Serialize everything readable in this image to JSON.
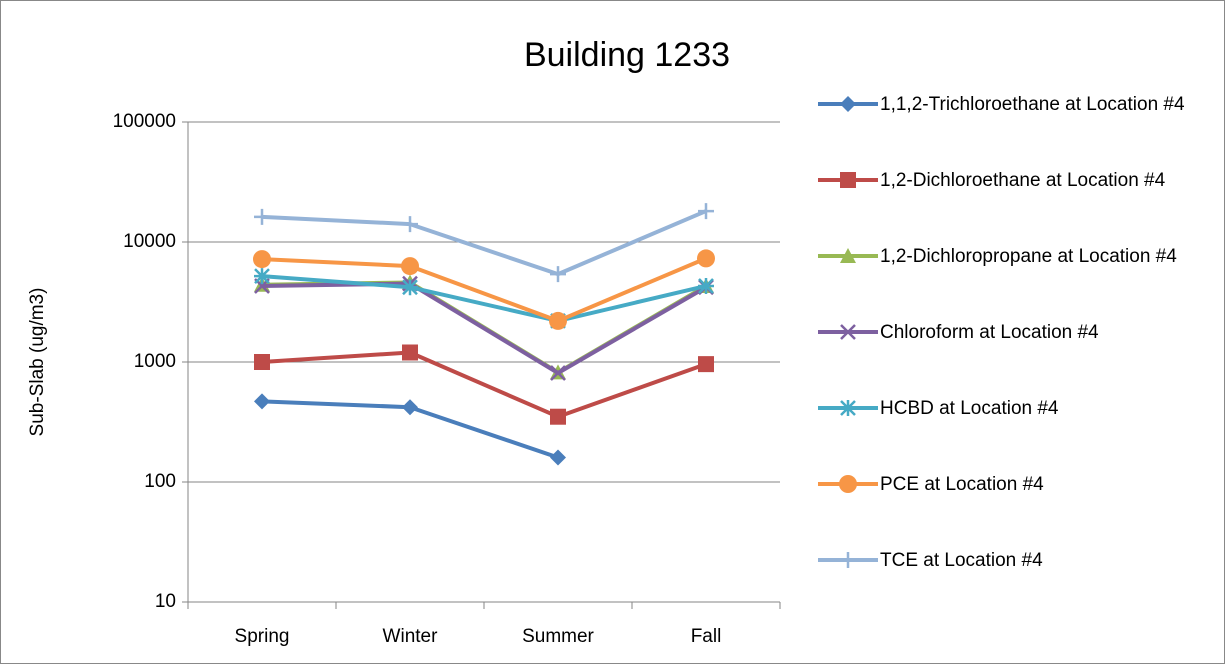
{
  "chart_data": {
    "type": "line",
    "title": "Building 1233",
    "y_label": "Sub-Slab (ug/m3)",
    "categories": [
      "Spring",
      "Winter",
      "Summer",
      "Fall"
    ],
    "ylim": [
      10,
      100000
    ],
    "yticks": [
      10,
      100,
      1000,
      10000,
      100000
    ],
    "log_scale": true,
    "grid": true,
    "legend": "right",
    "series": [
      {
        "name": "1,1,2-Trichloroethane at Location #4",
        "color": "#4a7ebb",
        "marker": "diamond",
        "values": [
          470,
          420,
          160,
          null
        ]
      },
      {
        "name": "1,2-Dichloroethane at Location #4",
        "color": "#be4b48",
        "marker": "square",
        "values": [
          1000,
          1200,
          350,
          960
        ]
      },
      {
        "name": "1,2-Dichloropropane at Location #4",
        "color": "#98b954",
        "marker": "triangle",
        "values": [
          4400,
          4600,
          820,
          4300
        ]
      },
      {
        "name": "Chloroform at Location #4",
        "color": "#7d60a0",
        "marker": "x",
        "values": [
          4300,
          4500,
          810,
          4200
        ]
      },
      {
        "name": "HCBD at Location #4",
        "color": "#46aac5",
        "marker": "star",
        "values": [
          5200,
          4200,
          2200,
          4300
        ]
      },
      {
        "name": "PCE at Location #4",
        "color": "#f79646",
        "marker": "circle",
        "values": [
          7200,
          6300,
          2200,
          7300
        ]
      },
      {
        "name": "TCE at Location #4",
        "color": "#95b3d7",
        "marker": "plus",
        "values": [
          16200,
          14100,
          5400,
          18100
        ]
      }
    ]
  }
}
